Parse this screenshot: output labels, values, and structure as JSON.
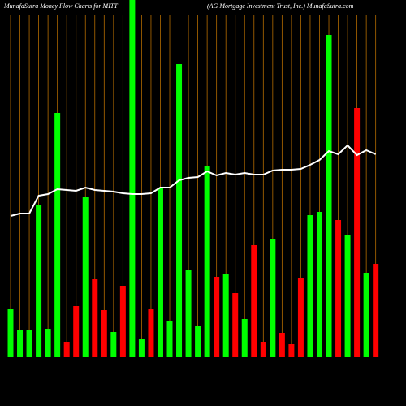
{
  "chart_data": {
    "type": "bar-line",
    "title": "MunafaSutra  Money Flow  Charts for MITT",
    "subtitle": "(AG Mortgage    Investment Trust,  Inc.) MunafaSutra.com",
    "ylim": [
      0,
      440
    ],
    "bars": {
      "values": [
        60,
        33,
        33,
        188,
        35,
        301,
        19,
        63,
        198,
        97,
        58,
        31,
        88,
        440,
        23,
        60,
        208,
        45,
        361,
        107,
        38,
        235,
        99,
        103,
        79,
        47,
        138,
        19,
        146,
        30,
        16,
        98,
        175,
        179,
        397,
        169,
        150,
        307,
        104,
        115
      ],
      "colors": [
        "#00ff00",
        "#00ff00",
        "#00ff00",
        "#00ff00",
        "#00ff00",
        "#00ff00",
        "#ff0000",
        "#ff0000",
        "#00ff00",
        "#ff0000",
        "#ff0000",
        "#00ff00",
        "#ff0000",
        "#00ff00",
        "#00ff00",
        "#ff0000",
        "#00ff00",
        "#00ff00",
        "#00ff00",
        "#00ff00",
        "#00ff00",
        "#00ff00",
        "#ff0000",
        "#00ff00",
        "#ff0000",
        "#00ff00",
        "#ff0000",
        "#ff0000",
        "#00ff00",
        "#ff0000",
        "#ff0000",
        "#ff0000",
        "#00ff00",
        "#00ff00",
        "#00ff00",
        "#ff0000",
        "#00ff00",
        "#ff0000",
        "#00ff00",
        "#ff0000"
      ]
    },
    "line": {
      "color": "#ffffff",
      "values": [
        174,
        177,
        177,
        199,
        201,
        207,
        206,
        205,
        209,
        206,
        205,
        204,
        202,
        201,
        201,
        202,
        209,
        209,
        218,
        221,
        222,
        229,
        224,
        227,
        225,
        227,
        225,
        225,
        230,
        231,
        231,
        232,
        237,
        243,
        254,
        250,
        261,
        249,
        255,
        250
      ]
    }
  }
}
